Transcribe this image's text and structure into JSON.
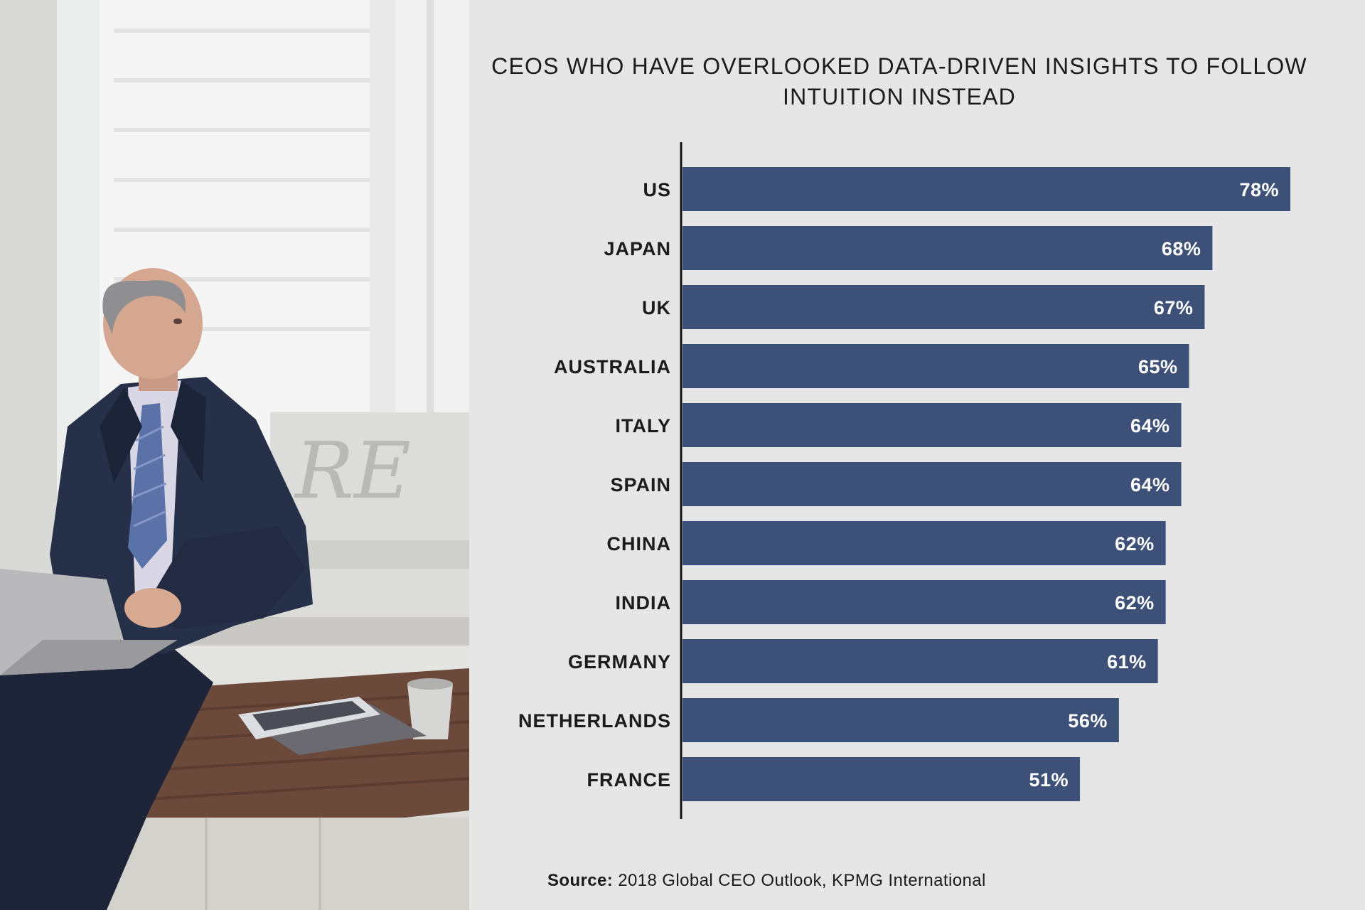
{
  "chart_data": {
    "type": "bar",
    "orientation": "horizontal",
    "title": "CEOS WHO HAVE OVERLOOKED DATA-DRIVEN INSIGHTS TO FOLLOW INTUITION INSTEAD",
    "categories": [
      "US",
      "JAPAN",
      "UK",
      "AUSTRALIA",
      "ITALY",
      "SPAIN",
      "CHINA",
      "INDIA",
      "GERMANY",
      "NETHERLANDS",
      "FRANCE"
    ],
    "values": [
      78,
      68,
      67,
      65,
      64,
      64,
      62,
      62,
      61,
      56,
      51
    ],
    "value_labels": [
      "78%",
      "68%",
      "67%",
      "65%",
      "64%",
      "64%",
      "62%",
      "62%",
      "61%",
      "56%",
      "51%"
    ],
    "xlim": [
      0,
      78
    ],
    "grid": false,
    "bar_color": "#3c5078",
    "label_color": "#ffffff"
  },
  "source": {
    "label": "Source:",
    "text": "2018 Global CEO Outlook, KPMG International"
  }
}
